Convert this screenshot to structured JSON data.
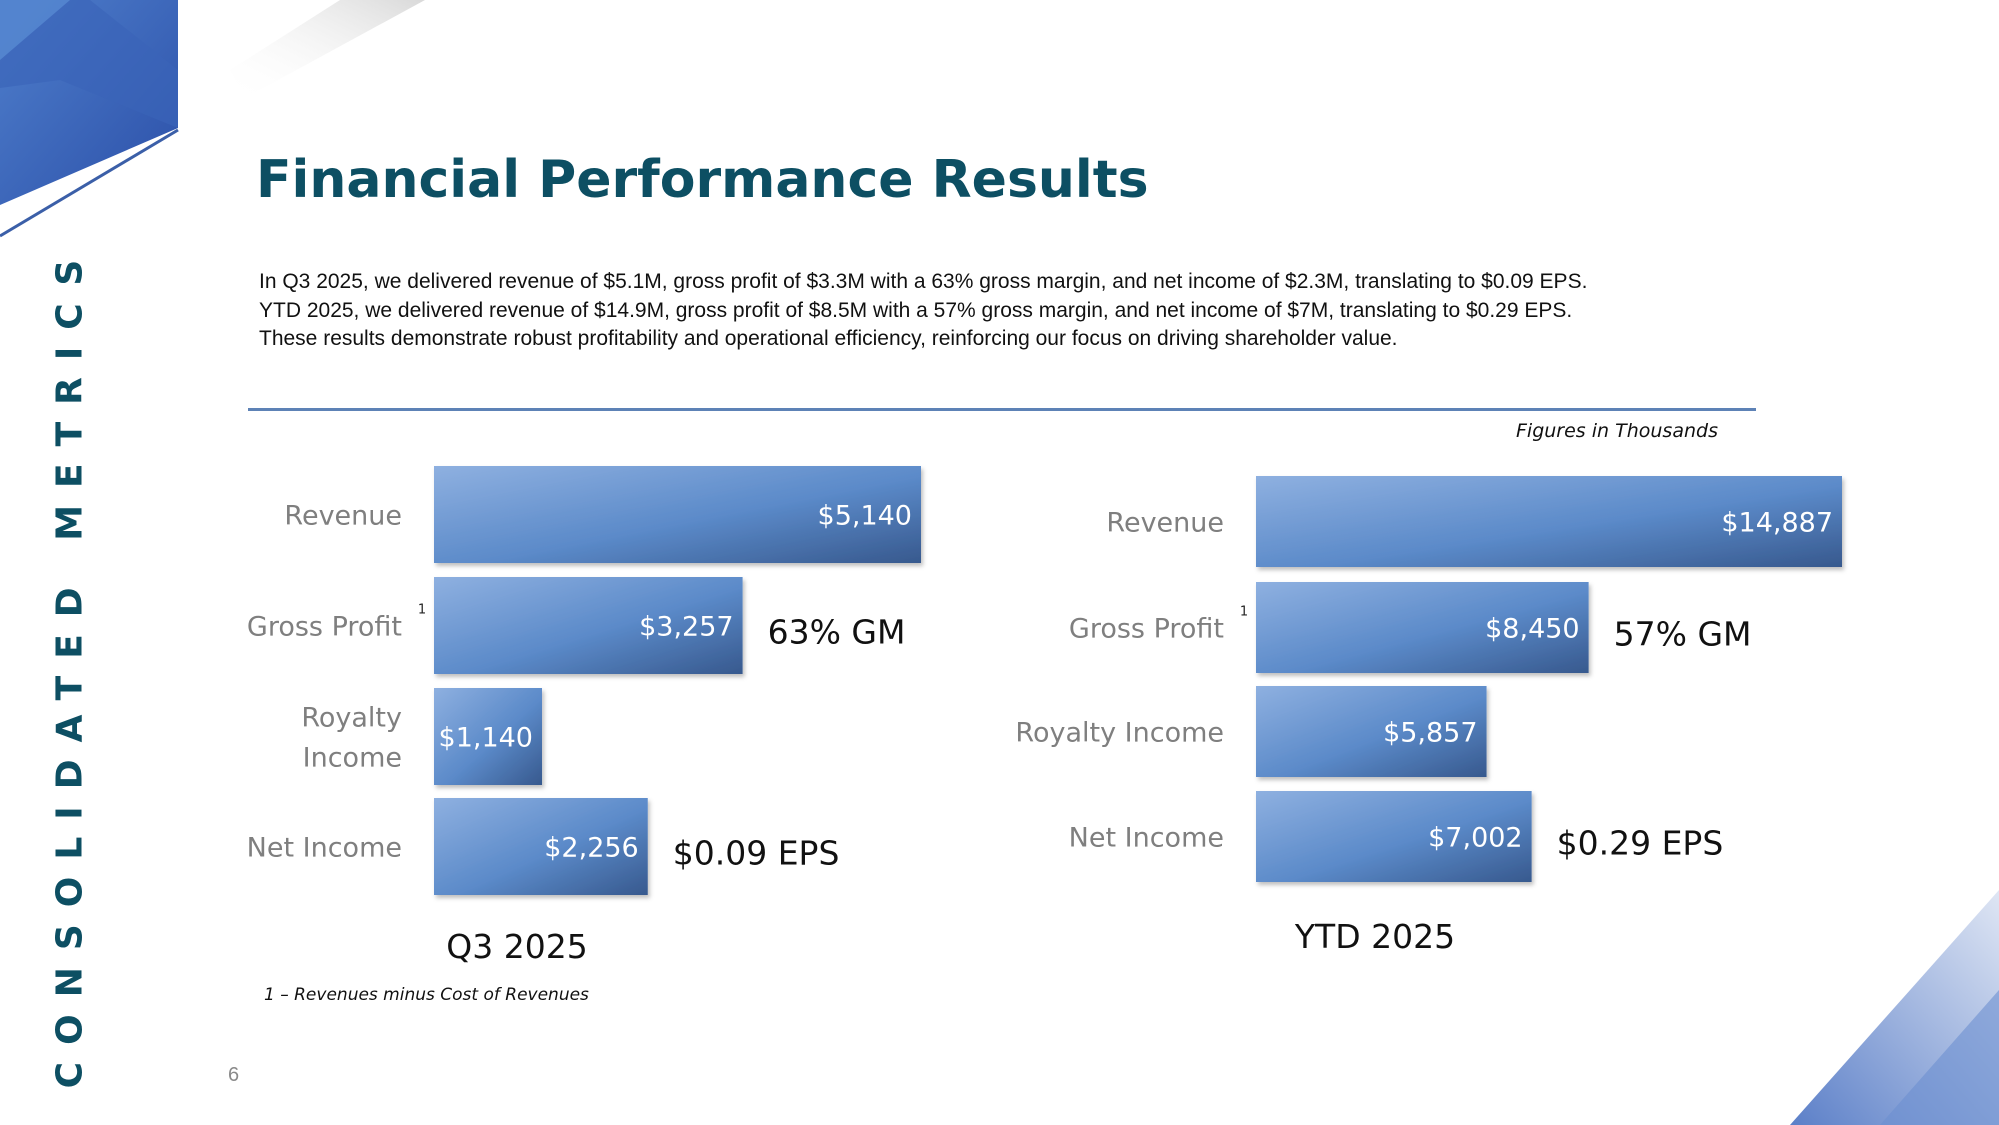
{
  "side_label": "CONSOLIDATED METRICS",
  "title": "Financial Performance Results",
  "summary_lines": [
    "In Q3 2025, we delivered revenue of $5.1M, gross profit of $3.3M with a  63% gross margin, and net income of $2.3M, translating to $0.09 EPS.",
    "YTD 2025, we delivered revenue of $14.9M, gross profit of $8.5M with a 57% gross margin, and net income of $7M, translating to $0.29 EPS.",
    "These results demonstrate robust profitability and operational efficiency, reinforcing our focus on driving shareholder value."
  ],
  "figures_note": "Figures in Thousands",
  "footnote": "1 – Revenues minus Cost of Revenues",
  "page_number": "6",
  "colors": {
    "title": "#0d4f63",
    "divider": "#5d82b6",
    "bar_light": "#8eb0e0",
    "bar_mid": "#5b8ac9",
    "bar_dark": "#37598e"
  },
  "chart_data": [
    {
      "type": "bar",
      "orientation": "horizontal",
      "title": "Q3 2025",
      "units": "thousands USD",
      "categories": [
        "Revenue",
        "Gross Profit",
        "Royalty Income",
        "Net Income"
      ],
      "category_labels": [
        [
          "Revenue"
        ],
        [
          "Gross Profit"
        ],
        [
          "Royalty",
          "Income"
        ],
        [
          "Net Income"
        ]
      ],
      "values": [
        5140,
        3257,
        1140,
        2256
      ],
      "value_labels": [
        "$5,140",
        "$3,257",
        "$1,140",
        "$2,256"
      ],
      "superscripts": [
        "",
        "1",
        "",
        ""
      ],
      "annotations": [
        "",
        "63% GM",
        "",
        "$0.09 EPS"
      ],
      "xlim": [
        0,
        5140
      ]
    },
    {
      "type": "bar",
      "orientation": "horizontal",
      "title": "YTD 2025",
      "units": "thousands USD",
      "categories": [
        "Revenue",
        "Gross Profit",
        "Royalty Income",
        "Net Income"
      ],
      "category_labels": [
        [
          "Revenue"
        ],
        [
          "Gross Profit"
        ],
        [
          "Royalty Income"
        ],
        [
          "Net Income"
        ]
      ],
      "values": [
        14887,
        8450,
        5857,
        7002
      ],
      "value_labels": [
        "$14,887",
        "$8,450",
        "$5,857",
        "$7,002"
      ],
      "superscripts": [
        "",
        "1",
        "",
        ""
      ],
      "annotations": [
        "",
        "57% GM",
        "",
        "$0.29 EPS"
      ],
      "xlim": [
        0,
        14887
      ]
    }
  ]
}
